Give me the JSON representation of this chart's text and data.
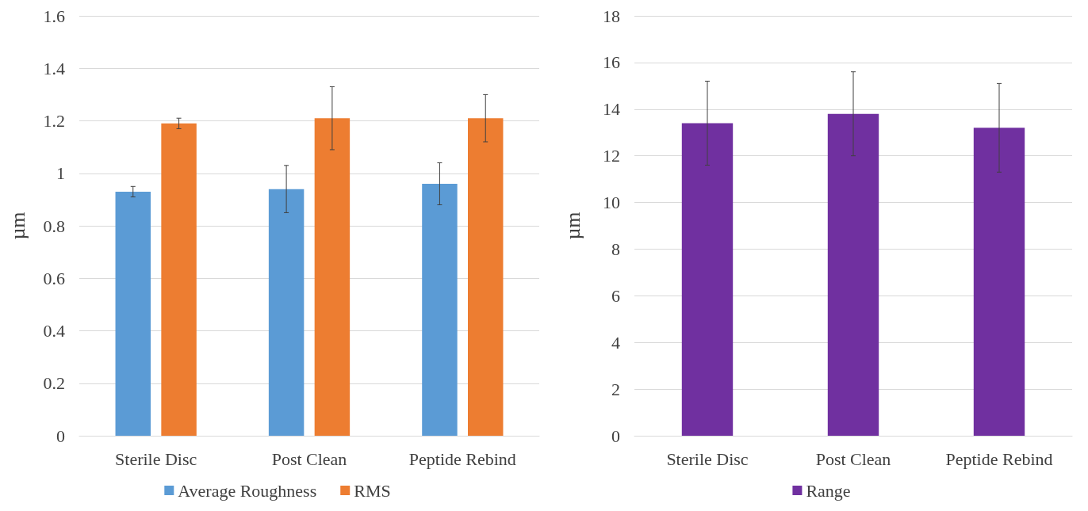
{
  "chart_data": [
    {
      "type": "bar",
      "ylabel": "µm",
      "categories": [
        "Sterile Disc",
        "Post Clean",
        "Peptide Rebind"
      ],
      "series": [
        {
          "name": "Average Roughness",
          "color": "#5b9bd5",
          "values": [
            0.93,
            0.94,
            0.96
          ],
          "errors": [
            0.02,
            0.09,
            0.08
          ]
        },
        {
          "name": "RMS",
          "color": "#ed7d31",
          "values": [
            1.19,
            1.21,
            1.21
          ],
          "errors": [
            0.02,
            0.12,
            0.09
          ]
        }
      ],
      "ylim": [
        0,
        1.6
      ],
      "yticks": [
        0,
        0.2,
        0.4,
        0.6,
        0.8,
        1,
        1.2,
        1.4,
        1.6
      ],
      "grid": "y",
      "legend": "bottom"
    },
    {
      "type": "bar",
      "ylabel": "µm",
      "categories": [
        "Sterile Disc",
        "Post Clean",
        "Peptide Rebind"
      ],
      "series": [
        {
          "name": "Range",
          "color": "#7030a0",
          "values": [
            13.4,
            13.8,
            13.2
          ],
          "errors": [
            1.8,
            1.8,
            1.9
          ]
        }
      ],
      "ylim": [
        0,
        18
      ],
      "yticks": [
        0,
        2,
        4,
        6,
        8,
        10,
        12,
        14,
        16,
        18
      ],
      "grid": "y",
      "legend": "bottom"
    }
  ]
}
